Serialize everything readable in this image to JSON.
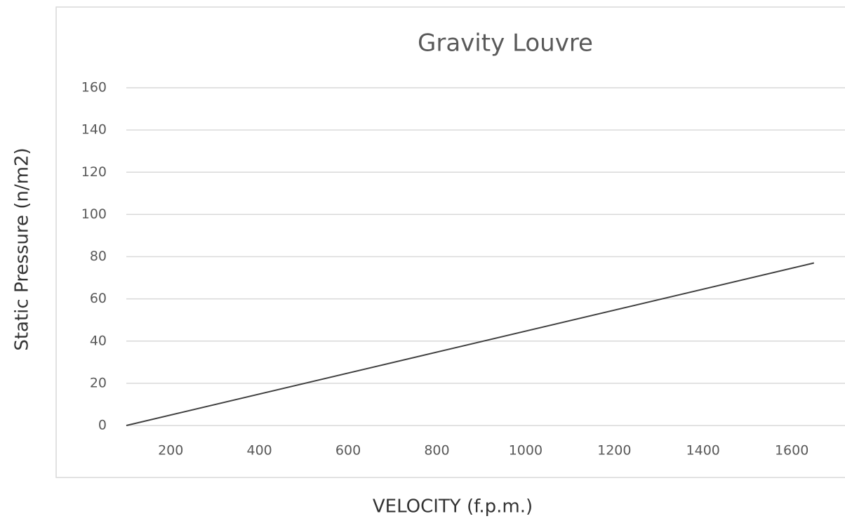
{
  "chart_data": {
    "type": "line",
    "title": "Gravity Louvre",
    "x_label": "VELOCITY (f.p.m.)",
    "y_label": "Static Pressure (n/m2)",
    "x": [
      100,
      1650
    ],
    "series": [
      {
        "name": "Gravity Louvre",
        "color": "#404040",
        "values": [
          0,
          77
        ]
      }
    ],
    "xlim": [
      100,
      1720
    ],
    "xticks": [
      200,
      400,
      600,
      800,
      1000,
      1200,
      1400,
      1600
    ],
    "ylim": [
      0,
      160
    ],
    "yticks": [
      0,
      20,
      40,
      60,
      80,
      100,
      120,
      140,
      160
    ],
    "grid": true
  }
}
